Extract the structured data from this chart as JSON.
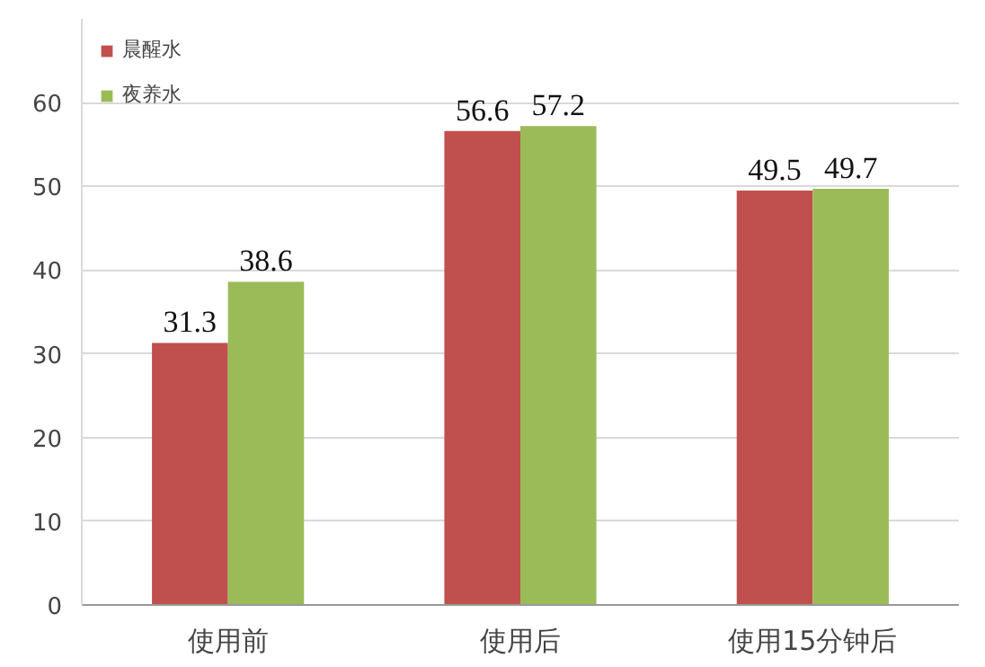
{
  "chart_data": {
    "type": "bar",
    "categories": [
      "使用前",
      "使用后",
      "使用15分钟后"
    ],
    "series": [
      {
        "name": "晨醒水",
        "color": "#c0504d",
        "values": [
          31.3,
          56.6,
          49.5
        ]
      },
      {
        "name": "夜养水",
        "color": "#9bbb59",
        "values": [
          38.6,
          57.2,
          49.7
        ]
      }
    ],
    "ylim": [
      0,
      70
    ],
    "yticks": [
      0,
      10,
      20,
      30,
      40,
      50,
      60
    ],
    "grid": "y",
    "legend": "top left",
    "data_labels": true
  }
}
